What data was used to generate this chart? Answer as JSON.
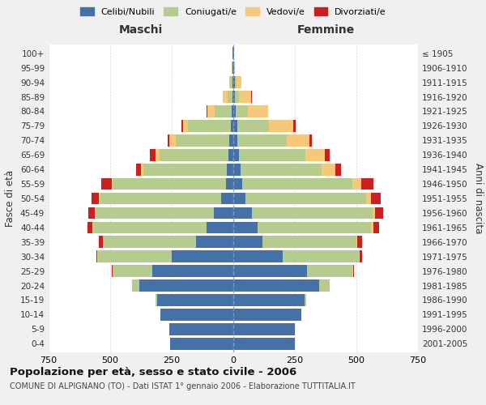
{
  "age_groups": [
    "0-4",
    "5-9",
    "10-14",
    "15-19",
    "20-24",
    "25-29",
    "30-34",
    "35-39",
    "40-44",
    "45-49",
    "50-54",
    "55-59",
    "60-64",
    "65-69",
    "70-74",
    "75-79",
    "80-84",
    "85-89",
    "90-94",
    "95-99",
    "100+"
  ],
  "birth_years": [
    "2001-2005",
    "1996-2000",
    "1991-1995",
    "1986-1990",
    "1981-1985",
    "1976-1980",
    "1971-1975",
    "1966-1970",
    "1961-1965",
    "1956-1960",
    "1951-1955",
    "1946-1950",
    "1941-1945",
    "1936-1940",
    "1931-1935",
    "1926-1930",
    "1921-1925",
    "1916-1920",
    "1911-1915",
    "1906-1910",
    "≤ 1905"
  ],
  "maschi": {
    "celibe": [
      255,
      260,
      295,
      310,
      380,
      330,
      250,
      150,
      110,
      80,
      50,
      30,
      25,
      20,
      15,
      10,
      5,
      4,
      3,
      2,
      2
    ],
    "coniugato": [
      0,
      1,
      2,
      5,
      30,
      160,
      300,
      380,
      460,
      480,
      490,
      460,
      340,
      280,
      220,
      175,
      70,
      20,
      10,
      3,
      1
    ],
    "vedovo": [
      0,
      0,
      0,
      0,
      0,
      0,
      1,
      1,
      2,
      3,
      5,
      5,
      10,
      15,
      25,
      20,
      30,
      20,
      5,
      1,
      0
    ],
    "divorziato": [
      0,
      0,
      0,
      0,
      0,
      2,
      5,
      15,
      20,
      25,
      30,
      40,
      20,
      25,
      8,
      5,
      3,
      0,
      0,
      0,
      0
    ]
  },
  "femmine": {
    "nubile": [
      250,
      250,
      275,
      290,
      350,
      300,
      200,
      120,
      100,
      75,
      50,
      35,
      28,
      22,
      18,
      15,
      10,
      8,
      5,
      3,
      2
    ],
    "coniugata": [
      0,
      1,
      2,
      5,
      40,
      185,
      310,
      380,
      460,
      490,
      490,
      450,
      330,
      270,
      200,
      130,
      50,
      15,
      8,
      2,
      1
    ],
    "vedova": [
      0,
      0,
      0,
      0,
      0,
      1,
      3,
      4,
      8,
      10,
      20,
      35,
      55,
      80,
      90,
      100,
      80,
      50,
      20,
      3,
      0
    ],
    "divorziata": [
      0,
      0,
      0,
      0,
      1,
      3,
      10,
      18,
      25,
      35,
      40,
      50,
      25,
      20,
      12,
      8,
      3,
      2,
      0,
      0,
      0
    ]
  },
  "colors": {
    "celibe": "#4472a8",
    "coniugato": "#b5cc8e",
    "vedovo": "#f5c87a",
    "divorziato": "#cc2020"
  },
  "xlim": 750,
  "title": "Popolazione per età, sesso e stato civile - 2006",
  "subtitle": "COMUNE DI ALPIGNANO (TO) - Dati ISTAT 1° gennaio 2006 - Elaborazione TUTTITALIA.IT",
  "ylabel_left": "Fasce di età",
  "ylabel_right": "Anni di nascita",
  "xlabel_maschi": "Maschi",
  "xlabel_femmine": "Femmine",
  "legend_labels": [
    "Celibi/Nubili",
    "Coniugati/e",
    "Vedovi/e",
    "Divorziati/e"
  ],
  "bg_color": "#f0f0f0",
  "plot_bg": "#ffffff"
}
